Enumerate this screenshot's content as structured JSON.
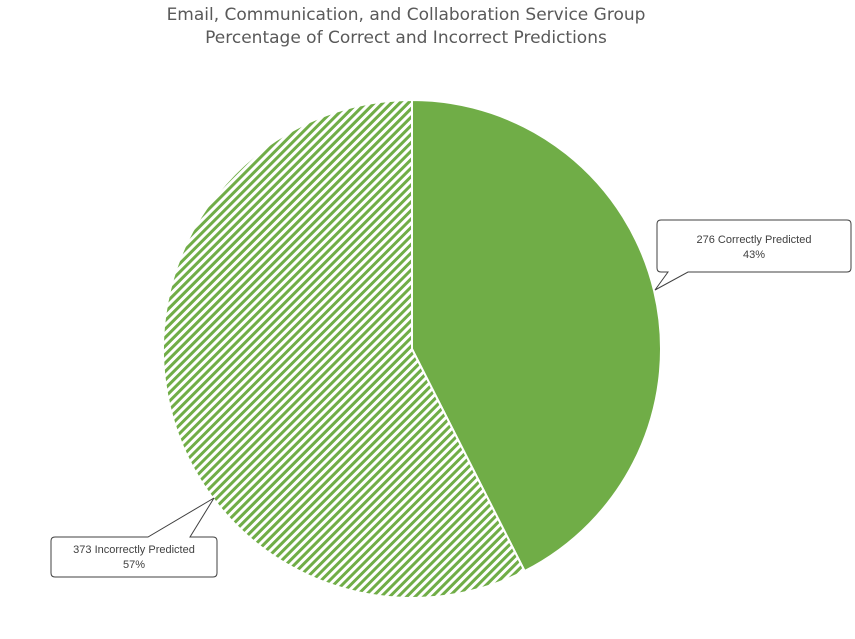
{
  "chart_data": {
    "type": "pie",
    "title": "Email, Communication, and Collaboration Service Group",
    "subtitle": "Percentage of Correct and Incorrect Predictions",
    "slices": [
      {
        "count": 276,
        "label": "Correctly Predicted",
        "percent": "43%",
        "value": 276,
        "fill": "solid",
        "color": "#70AD47"
      },
      {
        "count": 373,
        "label": "Incorrectly Predicted",
        "percent": "57%",
        "value": 373,
        "fill": "hatched",
        "color": "#70AD47"
      }
    ],
    "legend": "none",
    "data_labels": "callouts"
  }
}
